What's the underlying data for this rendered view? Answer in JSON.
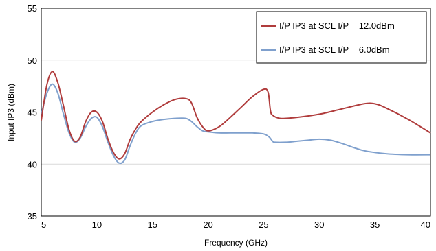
{
  "chart_data": {
    "type": "line",
    "title": "",
    "xlabel": "Frequency (GHz)",
    "ylabel": "Input IP3 (dBm)",
    "xlim": [
      5,
      40
    ],
    "ylim": [
      35,
      55
    ],
    "xticks": [
      5,
      10,
      15,
      20,
      25,
      30,
      35,
      40
    ],
    "yticks": [
      35,
      40,
      45,
      50,
      55
    ],
    "grid": "horizontal",
    "legend_position": "top-right",
    "series": [
      {
        "name": "I/P IP3 at SCL I/P =  12.0dBm",
        "color": "#b03c3c",
        "x": [
          5.0,
          5.5,
          6.0,
          6.5,
          7.0,
          7.5,
          8.0,
          8.5,
          9.0,
          9.5,
          10.0,
          10.5,
          11.0,
          11.5,
          12.0,
          12.5,
          13.0,
          13.5,
          14.0,
          15.0,
          16.0,
          17.0,
          18.0,
          18.5,
          19.0,
          19.5,
          20.0,
          21.0,
          22.0,
          23.0,
          24.0,
          25.0,
          25.4,
          25.6,
          25.8,
          26.5,
          28.0,
          30.0,
          32.0,
          34.0,
          35.0,
          36.0,
          38.0,
          40.0
        ],
        "y": [
          44.2,
          47.6,
          48.9,
          47.8,
          45.6,
          43.3,
          42.2,
          42.6,
          44.1,
          45.0,
          45.0,
          44.1,
          42.4,
          41.1,
          40.5,
          41.0,
          42.4,
          43.4,
          44.1,
          45.0,
          45.7,
          46.2,
          46.3,
          45.9,
          44.5,
          43.6,
          43.2,
          43.6,
          44.5,
          45.5,
          46.5,
          47.2,
          46.9,
          45.2,
          44.7,
          44.4,
          44.5,
          44.8,
          45.3,
          45.8,
          45.8,
          45.4,
          44.3,
          43.0
        ]
      },
      {
        "name": "I/P IP3 at SCL I/P =  6.0dBm",
        "color": "#7fa0cd",
        "x": [
          5.0,
          5.5,
          6.0,
          6.5,
          7.0,
          7.5,
          8.0,
          8.5,
          9.0,
          9.5,
          10.0,
          10.5,
          11.0,
          11.5,
          12.0,
          12.5,
          13.0,
          13.5,
          14.0,
          15.0,
          16.0,
          17.0,
          18.0,
          18.5,
          19.0,
          19.5,
          20.0,
          21.0,
          22.0,
          23.0,
          24.0,
          25.0,
          25.5,
          25.8,
          26.0,
          27.0,
          28.0,
          29.0,
          30.0,
          31.0,
          32.0,
          34.0,
          36.0,
          38.0,
          40.0
        ],
        "y": [
          44.8,
          46.8,
          47.7,
          46.8,
          44.8,
          43.0,
          42.1,
          42.5,
          43.6,
          44.4,
          44.5,
          43.6,
          42.1,
          40.8,
          40.1,
          40.4,
          41.8,
          43.0,
          43.7,
          44.1,
          44.3,
          44.4,
          44.4,
          44.1,
          43.6,
          43.2,
          43.1,
          43.0,
          43.0,
          43.0,
          43.0,
          42.9,
          42.6,
          42.2,
          42.1,
          42.1,
          42.2,
          42.3,
          42.4,
          42.3,
          42.0,
          41.3,
          41.0,
          40.9,
          40.9
        ]
      }
    ]
  }
}
